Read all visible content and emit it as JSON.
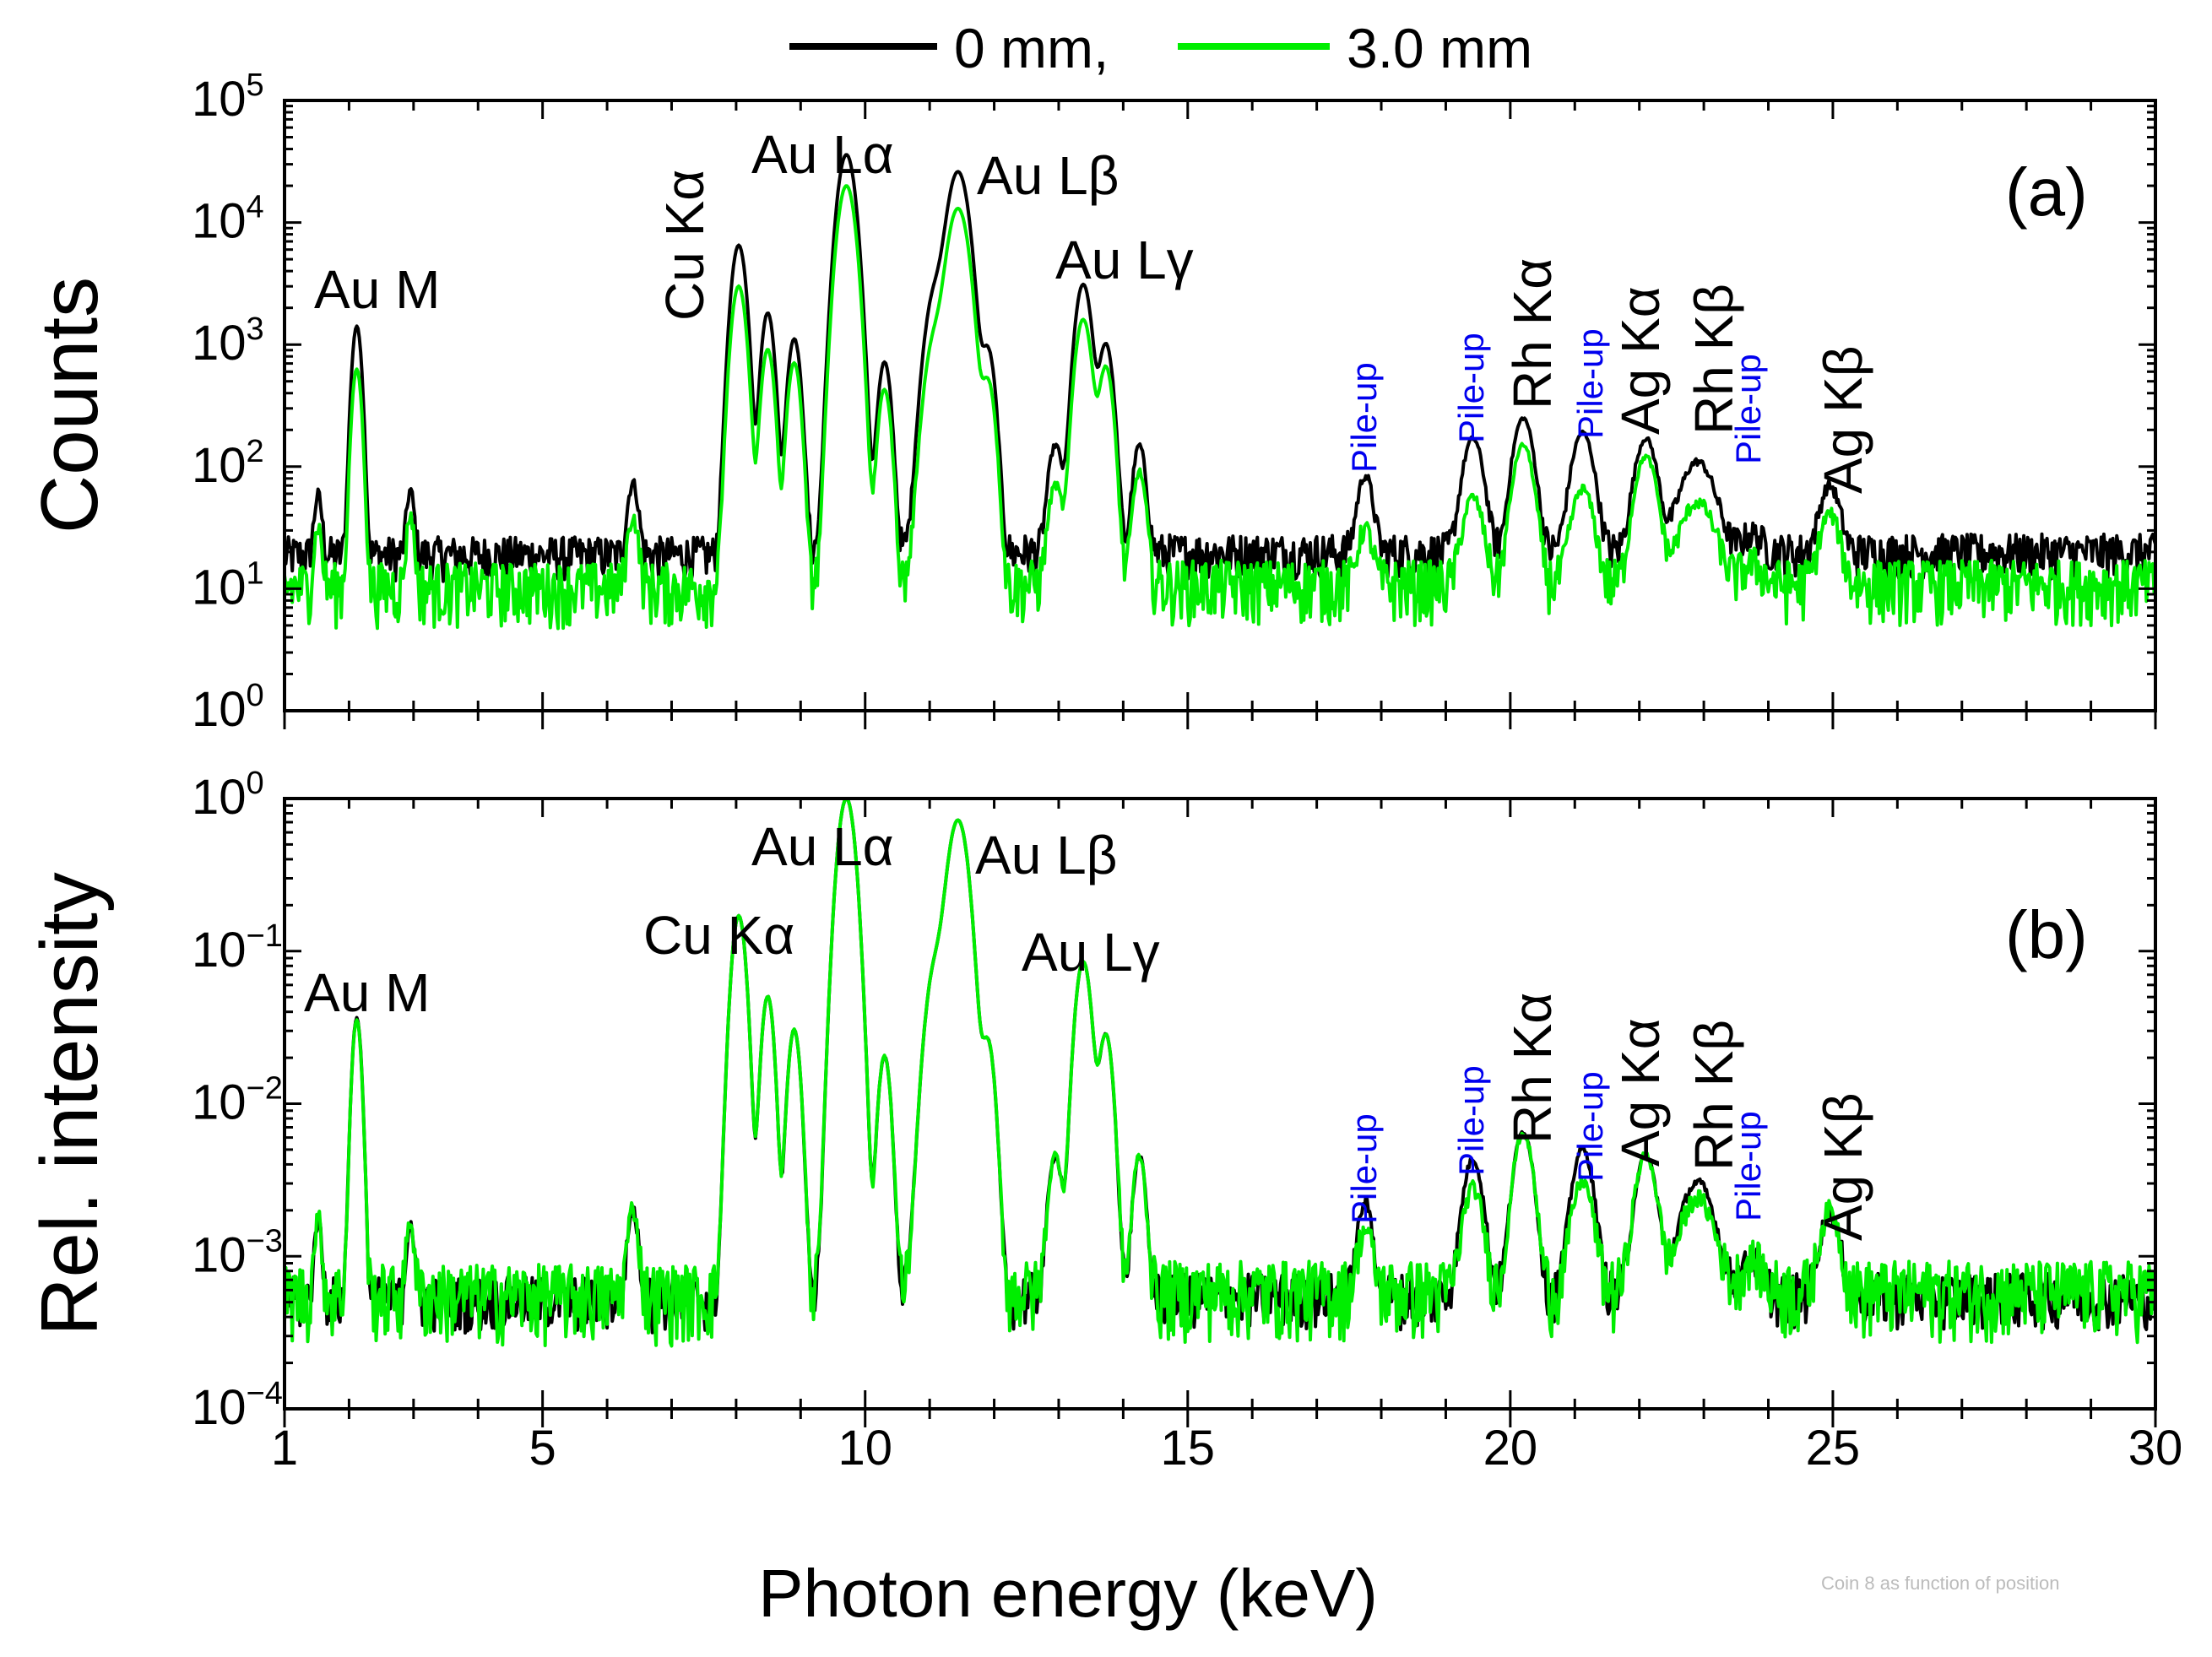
{
  "legend": {
    "entries": [
      {
        "label": "0 mm,",
        "color": "#000000"
      },
      {
        "label": "3.0 mm",
        "color": "#00ee00"
      }
    ]
  },
  "credit_text": "Coin 8 as function of position",
  "shared_xaxis": {
    "label": "Photon energy (keV)",
    "ticks": [
      1,
      5,
      10,
      15,
      20,
      25,
      30
    ],
    "range": [
      1,
      30
    ]
  },
  "chart_data": [
    {
      "type": "line",
      "panel": "(a)",
      "ylabel": "Counts",
      "yscale": "log",
      "ylim": [
        1,
        100000
      ],
      "yticks": [
        {
          "base": "10",
          "exp": "0"
        },
        {
          "base": "10",
          "exp": "1"
        },
        {
          "base": "10",
          "exp": "2"
        },
        {
          "base": "10",
          "exp": "3"
        },
        {
          "base": "10",
          "exp": "4"
        },
        {
          "base": "10",
          "exp": "5"
        }
      ],
      "xlim": [
        1,
        30
      ],
      "peaks": [
        {
          "x": 2.12,
          "label": "Au M",
          "black": 1400,
          "green": 620,
          "w": 0.06
        },
        {
          "x": 8.04,
          "label": "Cu Kα",
          "black": 6500,
          "green": 3000,
          "w": 0.09
        },
        {
          "x": 8.49,
          "label": "",
          "black": 1800,
          "green": 900,
          "w": 0.08
        },
        {
          "x": 8.9,
          "label": "",
          "black": 1100,
          "green": 700,
          "w": 0.08
        },
        {
          "x": 9.71,
          "label": "Au Lα",
          "black": 36000,
          "green": 20000,
          "w": 0.11
        },
        {
          "x": 10.3,
          "label": "",
          "black": 700,
          "green": 420,
          "w": 0.08
        },
        {
          "x": 11.1,
          "label": "",
          "black": 2800,
          "green": 1200,
          "w": 0.13
        },
        {
          "x": 11.44,
          "label": "Au Lβ",
          "black": 26000,
          "green": 13000,
          "w": 0.13
        },
        {
          "x": 11.9,
          "label": "",
          "black": 900,
          "green": 500,
          "w": 0.09
        },
        {
          "x": 12.95,
          "label": "",
          "black": 130,
          "green": 60,
          "w": 0.09
        },
        {
          "x": 13.38,
          "label": "Au Lγ",
          "black": 3100,
          "green": 1600,
          "w": 0.1
        },
        {
          "x": 13.73,
          "label": "",
          "black": 1000,
          "green": 650,
          "w": 0.09
        },
        {
          "x": 14.25,
          "label": "",
          "black": 130,
          "green": 80,
          "w": 0.08
        },
        {
          "x": 17.75,
          "label": "Pile-up",
          "black": 65,
          "green": 20,
          "w": 0.1
        },
        {
          "x": 19.42,
          "label": "Pile-up",
          "black": 150,
          "green": 45,
          "w": 0.13
        },
        {
          "x": 20.2,
          "label": "Rh Kα",
          "black": 230,
          "green": 140,
          "w": 0.13
        },
        {
          "x": 21.12,
          "label": "Pile-up",
          "black": 170,
          "green": 55,
          "w": 0.14
        },
        {
          "x": 22.1,
          "label": "Ag Kα",
          "black": 150,
          "green": 110,
          "w": 0.14
        },
        {
          "x": 22.9,
          "label": "Rh Kβ",
          "black": 90,
          "green": 40,
          "w": 0.22
        },
        {
          "x": 23.75,
          "label": "Pile-up",
          "black": 8,
          "green": 5,
          "w": 0.15
        },
        {
          "x": 24.95,
          "label": "Ag Kβ",
          "black": 50,
          "green": 30,
          "w": 0.13
        },
        {
          "x": 6.4,
          "label": "",
          "black": 55,
          "green": 28,
          "w": 0.07
        },
        {
          "x": 1.52,
          "label": "",
          "black": 40,
          "green": 22,
          "w": 0.05
        },
        {
          "x": 2.95,
          "label": "",
          "black": 45,
          "green": 30,
          "w": 0.05
        }
      ],
      "background": {
        "black": 20,
        "green": 11
      },
      "series": [
        {
          "name": "0 mm",
          "color": "#000000"
        },
        {
          "name": "3.0 mm",
          "color": "#00ee00"
        }
      ],
      "annotations": [
        "Au M",
        "Cu Kα",
        "Au Lα",
        "Au Lβ",
        "Au Lγ",
        "Pile-up",
        "Pile-up",
        "Rh Kα",
        "Pile-up",
        "Ag Kα",
        "Rh Kβ",
        "Pile-up",
        "Ag Kβ"
      ]
    },
    {
      "type": "line",
      "panel": "(b)",
      "ylabel": "Rel. intensity",
      "yscale": "log",
      "ylim": [
        0.0001,
        1
      ],
      "yticks": [
        {
          "base": "10",
          "exp": "−4"
        },
        {
          "base": "10",
          "exp": "−3"
        },
        {
          "base": "10",
          "exp": "−2"
        },
        {
          "base": "10",
          "exp": "−1"
        },
        {
          "base": "10",
          "exp": "0"
        }
      ],
      "xlim": [
        1,
        30
      ],
      "peaks": [
        {
          "x": 2.12,
          "label": "Au M",
          "black": 0.036,
          "green": 0.035,
          "w": 0.06
        },
        {
          "x": 8.04,
          "label": "Cu Kα",
          "black": 0.17,
          "green": 0.17,
          "w": 0.09
        },
        {
          "x": 8.49,
          "label": "",
          "black": 0.05,
          "green": 0.05,
          "w": 0.08
        },
        {
          "x": 8.9,
          "label": "",
          "black": 0.03,
          "green": 0.03,
          "w": 0.08
        },
        {
          "x": 9.71,
          "label": "Au Lα",
          "black": 1.0,
          "green": 1.0,
          "w": 0.11
        },
        {
          "x": 10.3,
          "label": "",
          "black": 0.02,
          "green": 0.02,
          "w": 0.08
        },
        {
          "x": 11.1,
          "label": "",
          "black": 0.08,
          "green": 0.08,
          "w": 0.13
        },
        {
          "x": 11.44,
          "label": "Au Lβ",
          "black": 0.72,
          "green": 0.72,
          "w": 0.13
        },
        {
          "x": 11.9,
          "label": "",
          "black": 0.025,
          "green": 0.025,
          "w": 0.09
        },
        {
          "x": 12.95,
          "label": "",
          "black": 0.004,
          "green": 0.004,
          "w": 0.09
        },
        {
          "x": 13.38,
          "label": "Au Lγ",
          "black": 0.085,
          "green": 0.085,
          "w": 0.1
        },
        {
          "x": 13.73,
          "label": "",
          "black": 0.028,
          "green": 0.028,
          "w": 0.09
        },
        {
          "x": 14.25,
          "label": "",
          "black": 0.004,
          "green": 0.004,
          "w": 0.08
        },
        {
          "x": 17.75,
          "label": "Pile-up",
          "black": 0.0017,
          "green": 0.0009,
          "w": 0.1
        },
        {
          "x": 19.42,
          "label": "Pile-up",
          "black": 0.0038,
          "green": 0.0022,
          "w": 0.13
        },
        {
          "x": 20.2,
          "label": "Rh Kα",
          "black": 0.006,
          "green": 0.0058,
          "w": 0.13
        },
        {
          "x": 21.12,
          "label": "Pile-up",
          "black": 0.0045,
          "green": 0.0025,
          "w": 0.14
        },
        {
          "x": 22.1,
          "label": "Ag Kα",
          "black": 0.004,
          "green": 0.004,
          "w": 0.14
        },
        {
          "x": 22.9,
          "label": "Rh Kβ",
          "black": 0.0025,
          "green": 0.0018,
          "w": 0.22
        },
        {
          "x": 23.75,
          "label": "Pile-up",
          "black": 0.0004,
          "green": 0.00035,
          "w": 0.15
        },
        {
          "x": 24.95,
          "label": "Ag Kβ",
          "black": 0.0014,
          "green": 0.0014,
          "w": 0.13
        },
        {
          "x": 6.4,
          "label": "",
          "black": 0.0015,
          "green": 0.0015,
          "w": 0.07
        },
        {
          "x": 1.52,
          "label": "",
          "black": 0.0012,
          "green": 0.0012,
          "w": 0.05
        },
        {
          "x": 2.95,
          "label": "",
          "black": 0.0012,
          "green": 0.0012,
          "w": 0.05
        }
      ],
      "background": {
        "black": 0.00055,
        "green": 0.0006
      },
      "series": [
        {
          "name": "0 mm",
          "color": "#000000"
        },
        {
          "name": "3.0 mm",
          "color": "#00ee00"
        }
      ],
      "annotations": [
        "Au M",
        "Cu Kα",
        "Au Lα",
        "Au Lβ",
        "Au Lγ",
        "Pile-up",
        "Pile-up",
        "Rh Kα",
        "Pile-up",
        "Ag Kα",
        "Rh Kβ",
        "Pile-up",
        "Ag Kβ"
      ]
    }
  ],
  "annotation_labels": {
    "au_m": "Au M",
    "cu_ka": "Cu Kα",
    "au_la": "Au Lα",
    "au_lb": "Au Lβ",
    "au_lg": "Au Lγ",
    "pileup": "Pile-up",
    "rh_ka": "Rh Kα",
    "ag_ka": "Ag Kα",
    "rh_kb": "Rh Kβ",
    "ag_kb": "Ag Kβ"
  }
}
